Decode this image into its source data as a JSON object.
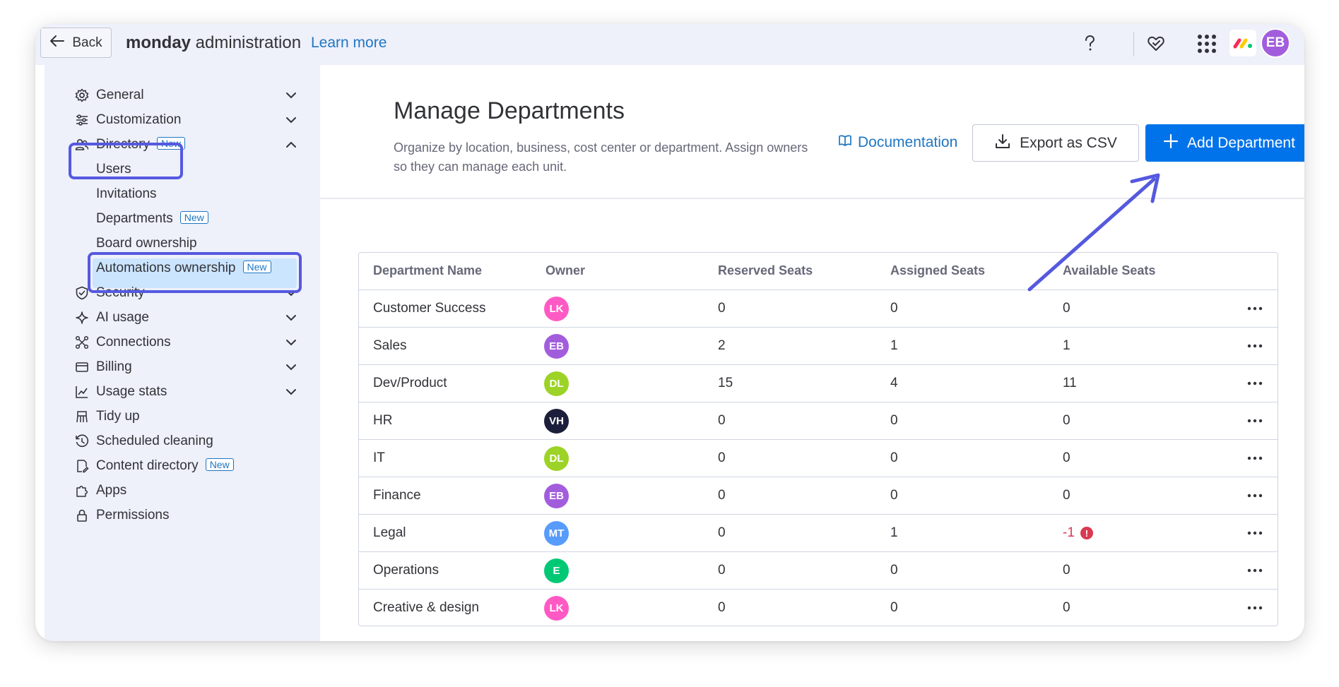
{
  "topbar": {
    "back_label": "Back",
    "brand_bold": "monday",
    "brand_rest": " administration",
    "learn_more": "Learn more",
    "avatar_initials": "EB",
    "avatar_color": "#a25ddc",
    "icons": [
      "help-icon",
      "heart-icon",
      "apps-grid-icon",
      "monday-logo"
    ]
  },
  "sidebar": {
    "items": [
      {
        "label": "General",
        "icon": "gear-icon",
        "chevron": "down"
      },
      {
        "label": "Customization",
        "icon": "sliders-icon",
        "chevron": "down"
      },
      {
        "label": "Directory",
        "icon": "users-icon",
        "chevron": "up",
        "badge": "New"
      },
      {
        "label": "Users"
      },
      {
        "label": "Invitations"
      },
      {
        "label": "Departments",
        "badge": "New",
        "selected": true
      },
      {
        "label": "Board ownership"
      },
      {
        "label": "Automations ownership",
        "badge": "New"
      },
      {
        "label": "Security",
        "icon": "shield-icon",
        "chevron": "down"
      },
      {
        "label": "AI usage",
        "icon": "sparkle-icon",
        "chevron": "down"
      },
      {
        "label": "Connections",
        "icon": "connections-icon",
        "chevron": "down"
      },
      {
        "label": "Billing",
        "icon": "card-icon",
        "chevron": "down"
      },
      {
        "label": "Usage stats",
        "icon": "chart-icon",
        "chevron": "down"
      },
      {
        "label": "Tidy up",
        "icon": "broom-icon"
      },
      {
        "label": "Scheduled cleaning",
        "icon": "clock-icon"
      },
      {
        "label": "Content directory",
        "icon": "content-icon",
        "badge": "New"
      },
      {
        "label": "Apps",
        "icon": "puzzle-icon"
      },
      {
        "label": "Permissions",
        "icon": "lock-icon"
      }
    ]
  },
  "main": {
    "title": "Manage Departments",
    "subtitle": "Organize by location, business, cost center or department. Assign owners so they can manage each unit.",
    "documentation": "Documentation",
    "export_label": "Export as CSV",
    "add_label": "Add Department",
    "accent": "#0073ea"
  },
  "table": {
    "columns": [
      "Department Name",
      "Owner",
      "Reserved Seats",
      "Assigned Seats",
      "Available Seats"
    ],
    "rows": [
      {
        "name": "Customer Success",
        "owner": "LK",
        "owner_color": "#ff5ac4",
        "reserved": "0",
        "assigned": "0",
        "available": "0"
      },
      {
        "name": "Sales",
        "owner": "EB",
        "owner_color": "#a25ddc",
        "reserved": "2",
        "assigned": "1",
        "available": "1"
      },
      {
        "name": "Dev/Product",
        "owner": "DL",
        "owner_color": "#9cd326",
        "reserved": "15",
        "assigned": "4",
        "available": "11"
      },
      {
        "name": "HR",
        "owner": "VH",
        "owner_color": "#1c1f3b",
        "reserved": "0",
        "assigned": "0",
        "available": "0"
      },
      {
        "name": "IT",
        "owner": "DL",
        "owner_color": "#9cd326",
        "reserved": "0",
        "assigned": "0",
        "available": "0"
      },
      {
        "name": "Finance",
        "owner": "EB",
        "owner_color": "#a25ddc",
        "reserved": "0",
        "assigned": "0",
        "available": "0"
      },
      {
        "name": "Legal",
        "owner": "MT",
        "owner_color": "#579bfc",
        "reserved": "0",
        "assigned": "1",
        "available": "-1",
        "warning": true
      },
      {
        "name": "Operations",
        "owner": "E",
        "owner_color": "#00c875",
        "reserved": "0",
        "assigned": "0",
        "available": "0"
      },
      {
        "name": "Creative & design",
        "owner": "LK",
        "owner_color": "#ff5ac4",
        "reserved": "0",
        "assigned": "0",
        "available": "0"
      }
    ],
    "warning_glyph": "!"
  },
  "annotation_color": "#5559df"
}
